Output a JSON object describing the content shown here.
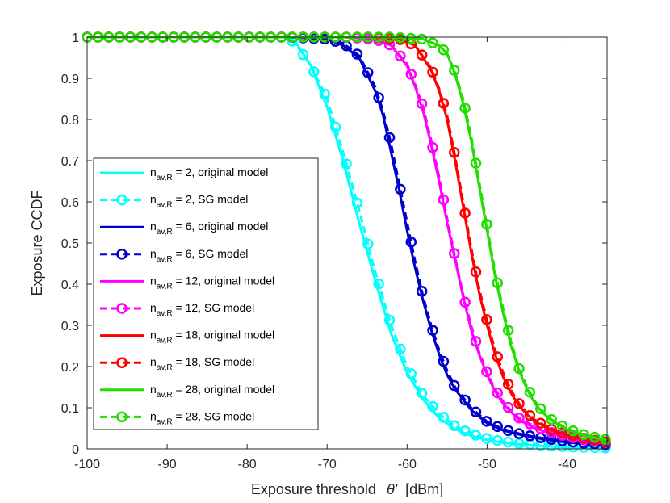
{
  "chart_data": {
    "type": "line",
    "xlabel_main": "Exposure threshold",
    "xlabel_symbol": "θ'",
    "xlabel_unit": "[dBm]",
    "ylabel": "Exposure CCDF",
    "xlim": [
      -100,
      -35
    ],
    "ylim": [
      0,
      1
    ],
    "xticks": [
      -100,
      -90,
      -80,
      -70,
      -60,
      -50,
      -40
    ],
    "yticks": [
      0,
      0.1,
      0.2,
      0.3,
      0.4,
      0.5,
      0.6,
      0.7,
      0.8,
      0.9,
      1
    ],
    "ytick_labels": [
      "0",
      "0.1",
      "0.2",
      "0.3",
      "0.4",
      "0.5",
      "0.6",
      "0.7",
      "0.8",
      "0.9",
      "1"
    ],
    "legend_position": "left",
    "legend_prefix": "n",
    "legend_subscript": "av,R",
    "series": [
      {
        "name": "n_av,R = 2, original model",
        "legend_suffix": " = 2, original model",
        "color": "#00ffff",
        "style": "solid",
        "marker": "none",
        "x": [
          -100,
          -75,
          -74,
          -72,
          -70,
          -68,
          -66,
          -64,
          -62,
          -60,
          -58,
          -56,
          -54,
          -52,
          -50,
          -48,
          -46,
          -44,
          -42,
          -40,
          -38,
          -36,
          -35
        ],
        "y": [
          1.0,
          1.0,
          0.99,
          0.93,
          0.83,
          0.7,
          0.55,
          0.41,
          0.28,
          0.185,
          0.12,
          0.075,
          0.048,
          0.032,
          0.022,
          0.015,
          0.011,
          0.008,
          0.006,
          0.004,
          0.003,
          0.002,
          0.002
        ]
      },
      {
        "name": "n_av,R = 2, SG model",
        "legend_suffix": " = 2, SG model",
        "color": "#00ffff",
        "style": "dashed",
        "marker": "circle",
        "x": [
          -100,
          -75,
          -74,
          -72,
          -70,
          -68,
          -66,
          -64,
          -62,
          -60,
          -58,
          -56,
          -54,
          -52,
          -50,
          -48,
          -46,
          -44,
          -42,
          -40,
          -38,
          -36,
          -35
        ],
        "y": [
          1.0,
          1.0,
          0.985,
          0.93,
          0.85,
          0.72,
          0.58,
          0.43,
          0.3,
          0.2,
          0.13,
          0.085,
          0.055,
          0.037,
          0.025,
          0.018,
          0.013,
          0.01,
          0.007,
          0.005,
          0.004,
          0.003,
          0.002
        ]
      },
      {
        "name": "n_av,R = 6, original model",
        "legend_suffix": " = 6, original model",
        "color": "#0000cd",
        "style": "solid",
        "marker": "none",
        "x": [
          -100,
          -75,
          -70,
          -68,
          -66,
          -64,
          -63,
          -62,
          -61,
          -60,
          -59,
          -58,
          -57,
          -56,
          -55,
          -54,
          -52,
          -50,
          -48,
          -46,
          -44,
          -42,
          -40,
          -38,
          -36,
          -35
        ],
        "y": [
          1.0,
          1.0,
          0.995,
          0.98,
          0.95,
          0.87,
          0.81,
          0.72,
          0.63,
          0.53,
          0.44,
          0.36,
          0.29,
          0.23,
          0.18,
          0.145,
          0.095,
          0.062,
          0.045,
          0.035,
          0.027,
          0.021,
          0.016,
          0.012,
          0.009,
          0.008
        ]
      },
      {
        "name": "n_av,R = 6, SG model",
        "legend_suffix": " = 6, SG model",
        "color": "#0000cd",
        "style": "dashed",
        "marker": "circle",
        "x": [
          -100,
          -75,
          -70,
          -68,
          -66,
          -64,
          -63,
          -62,
          -61,
          -60,
          -59,
          -58,
          -57,
          -56,
          -55,
          -54,
          -52,
          -50,
          -48,
          -46,
          -44,
          -42,
          -40,
          -38,
          -36,
          -35
        ],
        "y": [
          1.0,
          1.0,
          0.995,
          0.985,
          0.955,
          0.88,
          0.82,
          0.74,
          0.645,
          0.55,
          0.455,
          0.37,
          0.3,
          0.24,
          0.19,
          0.15,
          0.1,
          0.066,
          0.048,
          0.037,
          0.029,
          0.023,
          0.018,
          0.014,
          0.011,
          0.01
        ]
      },
      {
        "name": "n_av,R = 12, original model",
        "legend_suffix": " = 12, original model",
        "color": "#ff00ff",
        "style": "solid",
        "marker": "none",
        "x": [
          -100,
          -68,
          -64,
          -62,
          -60,
          -59,
          -58,
          -57,
          -56,
          -55,
          -54,
          -53,
          -52,
          -51,
          -50,
          -49,
          -48,
          -47,
          -46,
          -44,
          -42,
          -40,
          -38,
          -36,
          -35
        ],
        "y": [
          1.0,
          1.0,
          0.995,
          0.98,
          0.93,
          0.88,
          0.82,
          0.74,
          0.65,
          0.55,
          0.46,
          0.37,
          0.29,
          0.23,
          0.18,
          0.14,
          0.11,
          0.09,
          0.07,
          0.05,
          0.037,
          0.028,
          0.02,
          0.015,
          0.013
        ]
      },
      {
        "name": "n_av,R = 12, SG model",
        "legend_suffix": " = 12, SG model",
        "color": "#ff00ff",
        "style": "dashed",
        "marker": "circle",
        "x": [
          -100,
          -68,
          -64,
          -62,
          -60,
          -59,
          -58,
          -57,
          -56,
          -55,
          -54,
          -53,
          -52,
          -51,
          -50,
          -49,
          -48,
          -47,
          -46,
          -44,
          -42,
          -40,
          -38,
          -36,
          -35
        ],
        "y": [
          1.0,
          1.0,
          0.995,
          0.98,
          0.935,
          0.885,
          0.83,
          0.75,
          0.66,
          0.56,
          0.465,
          0.375,
          0.3,
          0.235,
          0.185,
          0.145,
          0.115,
          0.093,
          0.075,
          0.054,
          0.04,
          0.03,
          0.022,
          0.017,
          0.015
        ]
      },
      {
        "name": "n_av,R = 18, original model",
        "legend_suffix": " = 18, original model",
        "color": "#ff0000",
        "style": "solid",
        "marker": "none",
        "x": [
          -100,
          -65,
          -61,
          -59,
          -57,
          -56,
          -55,
          -54,
          -53,
          -52,
          -51,
          -50,
          -49,
          -48,
          -47,
          -46,
          -45,
          -44,
          -42,
          -40,
          -38,
          -36,
          -35
        ],
        "y": [
          1.0,
          1.0,
          0.995,
          0.98,
          0.92,
          0.87,
          0.8,
          0.7,
          0.59,
          0.48,
          0.38,
          0.3,
          0.23,
          0.175,
          0.135,
          0.105,
          0.083,
          0.067,
          0.046,
          0.033,
          0.024,
          0.018,
          0.015
        ]
      },
      {
        "name": "n_av,R = 18, SG model",
        "legend_suffix": " = 18, SG model",
        "color": "#ff0000",
        "style": "dashed",
        "marker": "circle",
        "x": [
          -100,
          -65,
          -61,
          -59,
          -57,
          -56,
          -55,
          -54,
          -53,
          -52,
          -51,
          -50,
          -49,
          -48,
          -47,
          -46,
          -45,
          -44,
          -42,
          -40,
          -38,
          -36,
          -35
        ],
        "y": [
          1.0,
          1.0,
          0.995,
          0.98,
          0.925,
          0.875,
          0.81,
          0.71,
          0.6,
          0.49,
          0.39,
          0.31,
          0.24,
          0.185,
          0.142,
          0.11,
          0.087,
          0.07,
          0.048,
          0.035,
          0.026,
          0.019,
          0.016
        ]
      },
      {
        "name": "n_av,R = 28, original model",
        "legend_suffix": " = 28, original model",
        "color": "#22dd00",
        "style": "solid",
        "marker": "none",
        "x": [
          -100,
          -62,
          -58,
          -56,
          -55,
          -54,
          -53,
          -52,
          -51,
          -50,
          -49,
          -48,
          -47,
          -46,
          -45,
          -44,
          -43,
          -42,
          -40,
          -38,
          -36,
          -35
        ],
        "y": [
          1.0,
          1.0,
          0.995,
          0.98,
          0.96,
          0.91,
          0.84,
          0.75,
          0.64,
          0.53,
          0.42,
          0.33,
          0.25,
          0.19,
          0.145,
          0.11,
          0.087,
          0.07,
          0.047,
          0.033,
          0.024,
          0.02
        ]
      },
      {
        "name": "n_av,R = 28, SG model",
        "legend_suffix": " = 28, SG model",
        "color": "#22dd00",
        "style": "dashed",
        "marker": "circle",
        "x": [
          -100,
          -62,
          -58,
          -56,
          -55,
          -54,
          -53,
          -52,
          -51,
          -50,
          -49,
          -48,
          -47,
          -46,
          -45,
          -44,
          -43,
          -42,
          -40,
          -38,
          -36,
          -35
        ],
        "y": [
          1.0,
          1.0,
          0.995,
          0.98,
          0.96,
          0.915,
          0.85,
          0.76,
          0.65,
          0.54,
          0.43,
          0.34,
          0.26,
          0.195,
          0.15,
          0.115,
          0.09,
          0.072,
          0.049,
          0.035,
          0.026,
          0.022
        ]
      }
    ]
  }
}
